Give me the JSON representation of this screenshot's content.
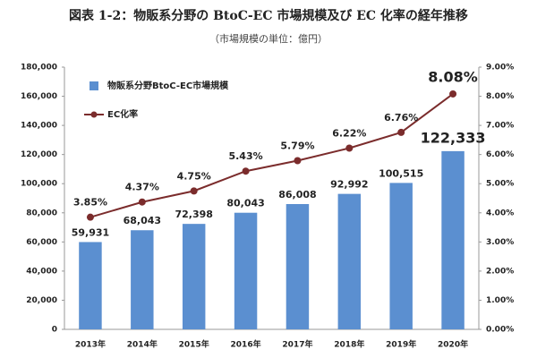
{
  "chart_data": {
    "type": "combo",
    "title": "図表 1-2：物販系分野の BtoC-EC 市場規模及び EC 化率の経年推移",
    "subtitle": "（市場規模の単位：億円）",
    "categories": [
      "2013年",
      "2014年",
      "2015年",
      "2016年",
      "2017年",
      "2018年",
      "2019年",
      "2020年"
    ],
    "series": [
      {
        "name": "物販系分野BtoC-EC市場規模",
        "type": "bar",
        "color": "#5b8fd0",
        "label_color": "#1f3864",
        "values": [
          59931,
          68043,
          72398,
          80043,
          86008,
          92992,
          100515,
          122333
        ],
        "value_labels": [
          "59,931",
          "68,043",
          "72,398",
          "80,043",
          "86,008",
          "92,992",
          "100,515",
          "122,333"
        ]
      },
      {
        "name": "EC化率",
        "type": "line",
        "axis": "y2",
        "color": "#7b2c2c",
        "label_color": "#7b2c2c",
        "values": [
          3.85,
          4.37,
          4.75,
          5.43,
          5.79,
          6.22,
          6.76,
          8.08
        ],
        "value_labels": [
          "3.85%",
          "4.37%",
          "4.75%",
          "5.43%",
          "5.79%",
          "6.22%",
          "6.76%",
          "8.08%"
        ]
      }
    ],
    "ylim": [
      0,
      180000
    ],
    "yticks": [
      0,
      {
        "value": 20000,
        "label": "20,000"
      },
      {
        "value": 40000,
        "label": "40,000"
      },
      {
        "value": 60000,
        "label": "60,000"
      },
      {
        "value": 80000,
        "label": "80,000"
      },
      {
        "value": 100000,
        "label": "100,000"
      },
      {
        "value": 120000,
        "label": "120,000"
      },
      {
        "value": 140000,
        "label": "140,000"
      },
      {
        "value": 160000,
        "label": "160,000"
      },
      {
        "value": 180000,
        "label": "180,000"
      }
    ],
    "y2lim": [
      0,
      9
    ],
    "y2ticks": [
      {
        "value": 0,
        "label": "0.00%"
      },
      {
        "value": 1,
        "label": "1.00%"
      },
      {
        "value": 2,
        "label": "2.00%"
      },
      {
        "value": 3,
        "label": "3.00%"
      },
      {
        "value": 4,
        "label": "4.00%"
      },
      {
        "value": 5,
        "label": "5.00%"
      },
      {
        "value": 6,
        "label": "6.00%"
      },
      {
        "value": 7,
        "label": "7.00%"
      },
      {
        "value": 8,
        "label": "8.00%"
      },
      {
        "value": 9,
        "label": "9.00%"
      }
    ],
    "grid": false,
    "legend": "top-left"
  }
}
